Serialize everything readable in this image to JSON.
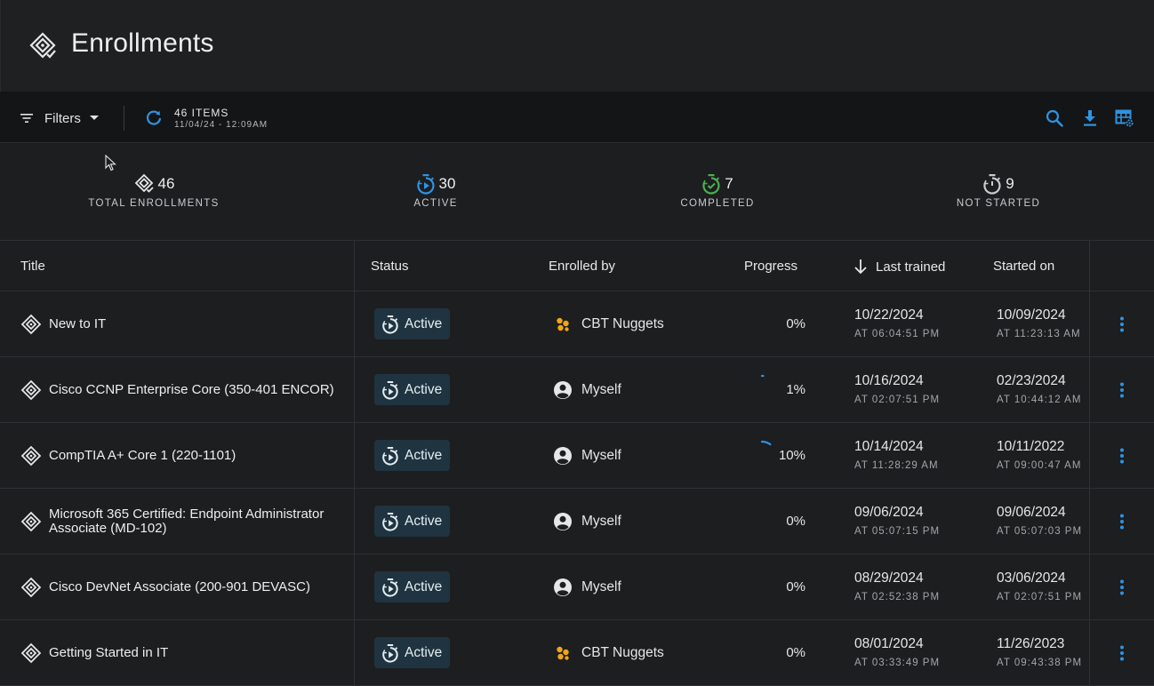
{
  "header": {
    "title": "Enrollments"
  },
  "toolbar": {
    "filters_label": "Filters",
    "items_count": "46 ITEMS",
    "items_date": "11/04/24 - 12:09AM"
  },
  "stats": [
    {
      "value": "46",
      "label": "TOTAL ENROLLMENTS",
      "icon": "enrollment-icon"
    },
    {
      "value": "30",
      "label": "ACTIVE",
      "icon": "stopwatch-icon",
      "color": "#2f93e3"
    },
    {
      "value": "7",
      "label": "COMPLETED",
      "icon": "stopwatch-check-icon",
      "color": "#4caf50"
    },
    {
      "value": "9",
      "label": "NOT STARTED",
      "icon": "stopwatch-icon",
      "color": "#c9cbce"
    }
  ],
  "table": {
    "columns": {
      "title": "Title",
      "status": "Status",
      "enrolled_by": "Enrolled by",
      "progress": "Progress",
      "last_trained": "Last trained",
      "started_on": "Started on"
    },
    "rows": [
      {
        "title": "New to IT",
        "status": "Active",
        "enrolled_by": "CBT Nuggets",
        "enrolled_type": "org",
        "progress_label": "0%",
        "progress": 0,
        "last_trained": "10/22/2024",
        "last_trained_time": "AT 06:04:51 PM",
        "started_on": "10/09/2024",
        "started_on_time": "AT 11:23:13 AM"
      },
      {
        "title": "Cisco CCNP Enterprise Core (350-401 ENCOR)",
        "status": "Active",
        "enrolled_by": "Myself",
        "enrolled_type": "user",
        "progress_label": "1%",
        "progress": 1,
        "last_trained": "10/16/2024",
        "last_trained_time": "AT 02:07:51 PM",
        "started_on": "02/23/2024",
        "started_on_time": "AT 10:44:12 AM"
      },
      {
        "title": "CompTIA A+ Core 1 (220-1101)",
        "status": "Active",
        "enrolled_by": "Myself",
        "enrolled_type": "user",
        "progress_label": "10%",
        "progress": 10,
        "last_trained": "10/14/2024",
        "last_trained_time": "AT 11:28:29 AM",
        "started_on": "10/11/2022",
        "started_on_time": "AT 09:00:47 AM"
      },
      {
        "title": "Microsoft 365 Certified: Endpoint Administrator Associate (MD-102)",
        "status": "Active",
        "enrolled_by": "Myself",
        "enrolled_type": "user",
        "progress_label": "0%",
        "progress": 0,
        "last_trained": "09/06/2024",
        "last_trained_time": "AT 05:07:15 PM",
        "started_on": "09/06/2024",
        "started_on_time": "AT 05:07:03 PM"
      },
      {
        "title": "Cisco DevNet Associate (200-901 DEVASC)",
        "status": "Active",
        "enrolled_by": "Myself",
        "enrolled_type": "user",
        "progress_label": "0%",
        "progress": 0,
        "last_trained": "08/29/2024",
        "last_trained_time": "AT 02:52:38 PM",
        "started_on": "03/06/2024",
        "started_on_time": "AT 02:07:51 PM"
      },
      {
        "title": "Getting Started in IT",
        "status": "Active",
        "enrolled_by": "CBT Nuggets",
        "enrolled_type": "org",
        "progress_label": "0%",
        "progress": 0,
        "last_trained": "08/01/2024",
        "last_trained_time": "AT 03:33:49 PM",
        "started_on": "11/26/2023",
        "started_on_time": "AT 09:43:38 PM"
      }
    ]
  },
  "colors": {
    "accent": "#2f93e3",
    "success": "#4caf50",
    "badge_bg": "#1f3440",
    "org_orange": "#f2a516"
  }
}
